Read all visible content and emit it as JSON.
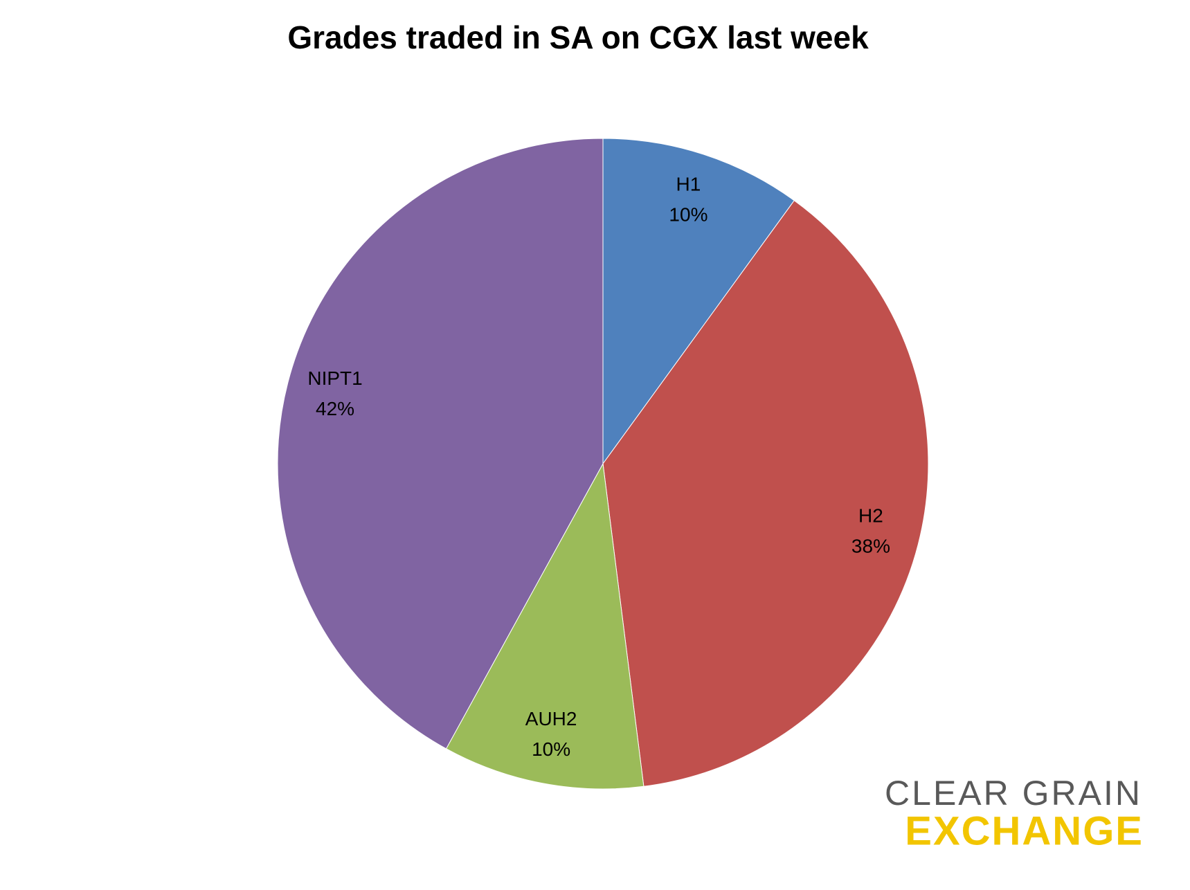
{
  "chart_data": {
    "type": "pie",
    "title": "Grades traded in SA on CGX last week",
    "categories": [
      "H1",
      "H2",
      "AUH2",
      "NIPT1"
    ],
    "values": [
      10,
      38,
      10,
      42
    ],
    "value_labels": [
      "10%",
      "38%",
      "10%",
      "42%"
    ],
    "colors": [
      "#4f81bd",
      "#c0504d",
      "#9bbb59",
      "#8064a2"
    ]
  },
  "logo": {
    "line1": "CLEAR GRAIN",
    "line2": "EXCHANGE"
  }
}
